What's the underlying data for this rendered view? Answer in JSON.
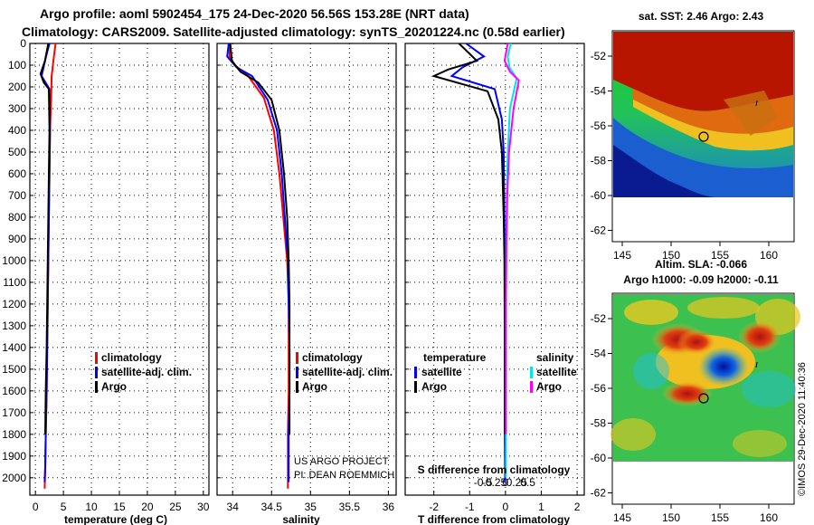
{
  "header": {
    "line1": "Argo profile: aoml 5902454_175 24-Dec-2020 56.56S 153.28E (NRT data)",
    "line2": "Climatology: CARS2009. Satellite-adjusted climatology: synTS_20201224.nc (0.58d earlier)"
  },
  "colors": {
    "climatology": "#ff0000",
    "satellite": "#0000ff",
    "argo": "#000000",
    "sat_salinity": "#00e5e5",
    "clim_salinity": "#ff00ff"
  },
  "chart_data": [
    {
      "type": "line",
      "title": "",
      "xlabel": "temperature (deg C)",
      "ylabel": "",
      "xlim": [
        -1,
        31
      ],
      "ylim": [
        2080,
        0
      ],
      "xticks": [
        0,
        5,
        10,
        15,
        20,
        25,
        30
      ],
      "yticks": [
        0,
        100,
        200,
        300,
        400,
        500,
        600,
        700,
        800,
        900,
        1000,
        1100,
        1200,
        1300,
        1400,
        1500,
        1600,
        1700,
        1800,
        1900,
        2000
      ],
      "legend": [
        "climatology",
        "satellite-adj. clim.",
        "Argo"
      ],
      "series": [
        {
          "name": "climatology",
          "color": "#ff0000",
          "x": [
            3.6,
            3.3,
            2.9,
            2.8,
            2.6,
            2.5,
            2.4,
            2.3,
            2.2,
            2.1,
            2.0,
            1.85,
            1.75,
            1.65
          ],
          "y": [
            0,
            60,
            150,
            250,
            400,
            600,
            800,
            1000,
            1200,
            1400,
            1600,
            1800,
            1950,
            2050
          ]
        },
        {
          "name": "satellite-adj. clim.",
          "color": "#0000ff",
          "x": [
            2.5,
            1.9,
            1.1,
            2.5,
            2.6,
            2.5,
            2.4,
            2.3,
            2.2,
            2.1,
            2.0,
            1.85,
            1.75,
            1.65
          ],
          "y": [
            0,
            60,
            150,
            210,
            400,
            600,
            800,
            1000,
            1200,
            1400,
            1600,
            1800,
            1950,
            2020
          ]
        },
        {
          "name": "Argo",
          "color": "#000000",
          "x": [
            2.3,
            1.7,
            0.9,
            1.5,
            2.4,
            2.5,
            2.4,
            2.3,
            2.2,
            2.1,
            2.0,
            1.85,
            1.75
          ],
          "y": [
            0,
            80,
            140,
            180,
            210,
            400,
            600,
            800,
            1000,
            1200,
            1400,
            1600,
            1800
          ]
        }
      ]
    },
    {
      "type": "line",
      "xlabel": "salinity",
      "xlim": [
        33.8,
        36.1
      ],
      "ylim": [
        2080,
        0
      ],
      "xticks": [
        34,
        34.5,
        35,
        35.5,
        36
      ],
      "legend": [
        "climatology",
        "satellite-adj. clim.",
        "Argo"
      ],
      "annotations": [
        "US ARGO PROJECT",
        "PI: DEAN ROEMMICH"
      ],
      "series": [
        {
          "name": "climatology",
          "color": "#ff0000",
          "x": [
            33.96,
            33.96,
            34.03,
            34.2,
            34.4,
            34.53,
            34.6,
            34.65,
            34.7,
            34.72,
            34.72,
            34.72,
            34.71,
            34.71,
            34.71
          ],
          "y": [
            0,
            60,
            100,
            150,
            250,
            400,
            600,
            800,
            1000,
            1200,
            1400,
            1600,
            1800,
            1950,
            2050
          ]
        },
        {
          "name": "satellite-adj. clim.",
          "color": "#0000ff",
          "x": [
            33.95,
            33.93,
            34.05,
            34.25,
            34.45,
            34.57,
            34.63,
            34.67,
            34.71,
            34.72,
            34.73,
            34.73,
            34.72,
            34.72
          ],
          "y": [
            0,
            60,
            110,
            150,
            260,
            400,
            600,
            800,
            1000,
            1200,
            1400,
            1600,
            1800,
            2020
          ]
        },
        {
          "name": "Argo",
          "color": "#000000",
          "x": [
            33.97,
            33.99,
            34.1,
            34.33,
            34.5,
            34.6,
            34.66,
            34.7,
            34.72,
            34.73,
            34.73,
            34.73,
            34.73
          ],
          "y": [
            0,
            80,
            130,
            180,
            260,
            400,
            600,
            800,
            1000,
            1200,
            1400,
            1600,
            1800
          ]
        }
      ]
    },
    {
      "type": "line",
      "xlabel": "T difference from climatology",
      "xlim": [
        -2.8,
        2.2
      ],
      "ylim": [
        2080,
        0
      ],
      "xticks": [
        -2,
        -1,
        0,
        1,
        2
      ],
      "x2label": "S difference from climatology",
      "x2ticks": [
        -0.5,
        -0.25,
        0,
        0.25,
        0.5
      ],
      "legend_left": {
        "title": "temperature",
        "items": [
          "satellite",
          "Argo"
        ]
      },
      "legend_right": {
        "title": "salinity",
        "items": [
          "satellite",
          "Argo"
        ]
      },
      "series": [
        {
          "name": "temperature satellite",
          "color": "#0000ff",
          "x": [
            -1.1,
            -0.6,
            -1.2,
            -1.5,
            -0.3,
            -0.1,
            -0.05,
            -0.03,
            -0.02,
            -0.02,
            -0.02,
            -0.02,
            -0.01
          ],
          "y": [
            0,
            60,
            110,
            150,
            210,
            350,
            500,
            800,
            1000,
            1400,
            1600,
            1800,
            2020
          ]
        },
        {
          "name": "temperature Argo",
          "color": "#000000",
          "x": [
            -1.3,
            -0.8,
            -1.6,
            -2.0,
            -0.5,
            -0.2,
            -0.1,
            -0.05,
            -0.03,
            -0.02,
            -0.02,
            -0.02
          ],
          "y": [
            0,
            80,
            120,
            150,
            220,
            350,
            500,
            800,
            1000,
            1400,
            1600,
            1800
          ]
        },
        {
          "name": "salinity satellite",
          "color": "#00e5e5",
          "x": [
            0.12,
            0.05,
            0.09,
            0.25,
            0.1,
            0.05,
            0.03,
            0.02,
            0.01,
            0.01,
            0.01,
            0.01
          ],
          "y": [
            0,
            60,
            110,
            160,
            300,
            500,
            700,
            900,
            1200,
            1500,
            1800,
            2000
          ]
        },
        {
          "name": "salinity Argo",
          "color": "#ff00ff",
          "x": [
            0.05,
            -0.02,
            0.1,
            0.3,
            0.18,
            0.08,
            0.04,
            0.02,
            0.01,
            0.01,
            0.01
          ],
          "y": [
            0,
            80,
            130,
            170,
            300,
            500,
            700,
            900,
            1200,
            1500,
            1800
          ]
        }
      ]
    }
  ],
  "maps": {
    "sst": {
      "title": "sat. SST: 2.46 Argo: 2.43",
      "yticks": [
        "-52",
        "-54",
        "-56",
        "-58",
        "-60",
        "-62"
      ],
      "xticks": [
        "145",
        "150",
        "155",
        "160"
      ]
    },
    "sla": {
      "title1": "Altim. SLA: -0.066",
      "title2": "Argo h1000: -0.09 h2000: -0.11",
      "yticks": [
        "-52",
        "-54",
        "-56",
        "-58",
        "-60",
        "-62"
      ],
      "xticks": [
        "145",
        "150",
        "155",
        "160"
      ]
    }
  },
  "credit": "©IMOS 29-Dec-2020 11:40:36"
}
